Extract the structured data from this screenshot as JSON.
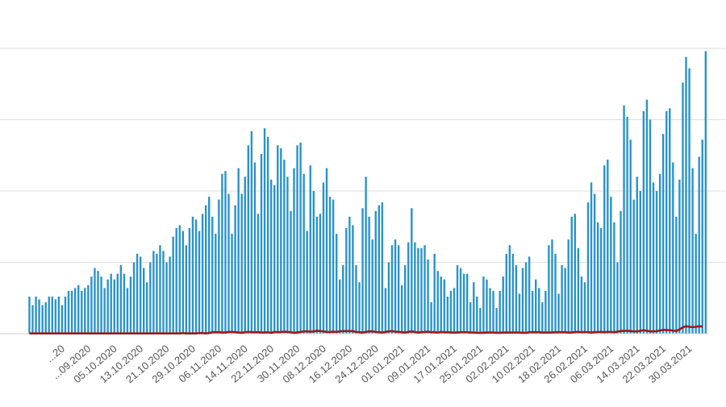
{
  "chart_data": {
    "type": "bar",
    "title": "",
    "xlabel": "",
    "ylabel": "",
    "ylim": [
      0,
      100
    ],
    "grid": true,
    "legend": "none",
    "colors": {
      "bars": "#2a93c8",
      "line": "#9b1b1b",
      "grid": "#dedede",
      "text": "#555555"
    },
    "x_start": "18.09.2020",
    "x_tick_labels": [
      "...20",
      "...09.2020",
      "05.10.2020",
      "13.10.2020",
      "21.10.2020",
      "29.10.2020",
      "06.11.2020",
      "14.11.2020",
      "22.11.2020",
      "30.11.2020",
      "08.12.2020",
      "16.12.2020",
      "24.12.2020",
      "01.01.2021",
      "09.01.2021",
      "17.01.2021",
      "25.01.2021",
      "02.02.2021",
      "10.02.2021",
      "18.02.2021",
      "26.02.2021",
      "06.03.2021",
      "14.03.2021",
      "22.03.2021",
      "30.03.2021"
    ],
    "series": [
      {
        "type": "bar",
        "values": [
          13,
          10,
          13,
          12,
          10,
          11,
          13,
          13,
          12,
          13,
          10,
          13,
          15,
          15,
          16,
          17,
          15,
          16,
          17,
          20,
          23,
          22,
          20,
          16,
          19,
          21,
          19,
          21,
          24,
          21,
          16,
          20,
          25,
          28,
          27,
          23,
          18,
          25,
          29,
          28,
          31,
          29,
          25,
          27,
          34,
          37,
          38,
          36,
          31,
          37,
          41,
          40,
          36,
          42,
          45,
          48,
          41,
          35,
          47,
          56,
          57,
          49,
          35,
          45,
          58,
          49,
          55,
          66,
          71,
          60,
          42,
          63,
          72,
          69,
          54,
          52,
          66,
          65,
          61,
          55,
          43,
          58,
          66,
          67,
          56,
          36,
          59,
          50,
          41,
          42,
          53,
          58,
          48,
          47,
          35,
          19,
          24,
          37,
          41,
          38,
          24,
          18,
          44,
          55,
          41,
          33,
          43,
          45,
          46,
          16,
          25,
          31,
          33,
          31,
          17,
          24,
          32,
          44,
          32,
          30,
          30,
          31,
          26,
          11,
          28,
          22,
          20,
          19,
          13,
          15,
          16,
          24,
          23,
          21,
          21,
          11,
          18,
          13,
          9,
          20,
          19,
          16,
          15,
          9,
          15,
          20,
          28,
          31,
          28,
          24,
          14,
          23,
          25,
          27,
          15,
          19,
          16,
          11,
          15,
          31,
          33,
          28,
          14,
          24,
          23,
          33,
          41,
          42,
          30,
          20,
          18,
          46,
          53,
          49,
          39,
          37,
          59,
          61,
          48,
          39,
          25,
          43,
          80,
          76,
          68,
          47,
          55,
          50,
          78,
          82,
          75,
          53,
          50,
          56,
          70,
          78,
          79,
          60,
          41,
          54,
          88,
          97,
          93,
          58,
          35,
          62,
          68,
          99
        ]
      },
      {
        "type": "line",
        "name": "",
        "values": [
          0.1,
          0.1,
          0.1,
          0.1,
          0.1,
          0.1,
          0.1,
          0.1,
          0.1,
          0.1,
          0.1,
          0.1,
          0.1,
          0.1,
          0.1,
          0.1,
          0.1,
          0.1,
          0.1,
          0.1,
          0.1,
          0.1,
          0.1,
          0.1,
          0.1,
          0.1,
          0.1,
          0.1,
          0.1,
          0.1,
          0.1,
          0.1,
          0.1,
          0.1,
          0.1,
          0.1,
          0.1,
          0.1,
          0.1,
          0.1,
          0.1,
          0.1,
          0.1,
          0.1,
          0.1,
          0.1,
          0.1,
          0.2,
          0.1,
          0.1,
          0.1,
          0.1,
          0.2,
          0.2,
          0.1,
          0.2,
          0.5,
          0.5,
          0.5,
          0.4,
          0.4,
          0.6,
          0.6,
          0.5,
          0.4,
          0.3,
          0.5,
          0.6,
          0.5,
          0.5,
          0.5,
          0.4,
          0.4,
          0.5,
          0.3,
          0.6,
          0.5,
          0.6,
          0.7,
          0.6,
          0.5,
          0.3,
          0.4,
          0.6,
          0.8,
          0.8,
          0.7,
          0.8,
          1,
          0.9,
          0.8,
          0.6,
          0.6,
          0.7,
          0.6,
          0.8,
          0.9,
          0.9,
          0.9,
          0.9,
          0.6,
          0.5,
          0.4,
          0.6,
          0.8,
          0.8,
          0.6,
          0.5,
          0.4,
          0.6,
          0.8,
          0.9,
          0.7,
          0.6,
          0.5,
          0.4,
          0.6,
          0.8,
          0.6,
          0.4,
          0.5,
          0.6,
          0.7,
          0.5,
          0.5,
          0.4,
          0.6,
          0.5,
          0.5,
          0.4,
          0.4,
          0.4,
          0.5,
          0.5,
          0.5,
          0.4,
          0.4,
          0.3,
          0.3,
          0.3,
          0.4,
          0.4,
          0.4,
          0.3,
          0.3,
          0.4,
          0.4,
          0.4,
          0.4,
          0.4,
          0.4,
          0.3,
          0.3,
          0.5,
          0.5,
          0.5,
          0.5,
          0.4,
          0.4,
          0.4,
          0.4,
          0.5,
          0.5,
          0.5,
          0.5,
          0.4,
          0.4,
          0.6,
          0.6,
          0.5,
          0.6,
          0.5,
          0.4,
          0.5,
          0.6,
          0.6,
          0.5,
          0.6,
          0.6,
          0.5,
          0.7,
          0.9,
          1,
          1,
          0.9,
          0.8,
          0.8,
          1,
          1.2,
          1,
          0.8,
          0.8,
          0.9,
          1.1,
          1.3,
          1.3,
          1.2,
          1.1,
          0.9,
          1.5,
          2.2,
          2.6,
          2.4,
          2.3,
          2.4,
          2.6,
          2.5
        ]
      }
    ]
  }
}
